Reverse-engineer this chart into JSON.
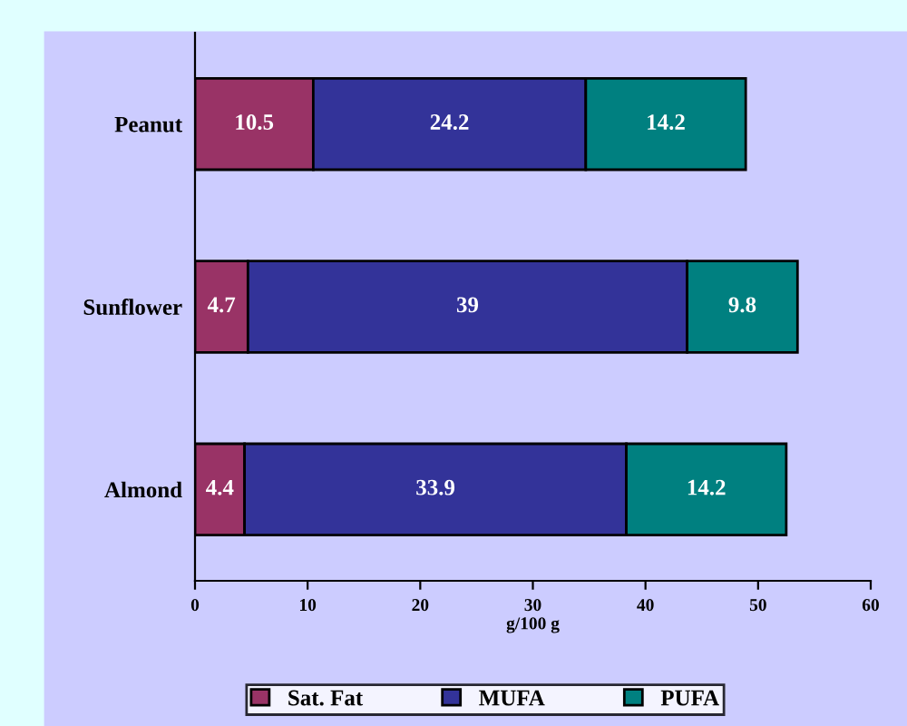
{
  "chart_data": {
    "type": "bar",
    "orientation": "horizontal",
    "stacked": true,
    "categories": [
      "Peanut",
      "Sunflower",
      "Almond"
    ],
    "xlabel": "g/100 g",
    "series": [
      {
        "name": "Sat. Fat",
        "color": "#993366",
        "values": [
          10.5,
          4.7,
          4.4
        ]
      },
      {
        "name": "MUFA",
        "color": "#333399",
        "values": [
          24.2,
          39,
          33.9
        ]
      },
      {
        "name": "PUFA",
        "color": "#008080",
        "values": [
          14.2,
          9.8,
          14.2
        ]
      }
    ],
    "xlim": [
      0,
      60
    ],
    "xticks": [
      0,
      10,
      20,
      30,
      40,
      50,
      60
    ],
    "data_labels": true,
    "legend": "bottom",
    "grid": false
  }
}
